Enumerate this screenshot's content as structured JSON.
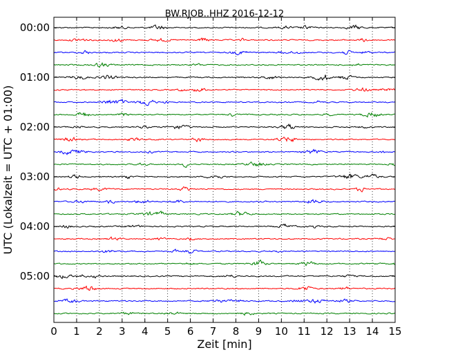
{
  "chart_data": {
    "type": "line",
    "title": "BW.RJOB..HHZ 2016-12-12",
    "xlabel": "Zeit  [min]",
    "ylabel": "UTC (Lokalzeit = UTC + 01:00)",
    "xlim": [
      0,
      15
    ],
    "x_ticks": [
      "0",
      "1",
      "2",
      "3",
      "4",
      "5",
      "6",
      "7",
      "8",
      "9",
      "10",
      "11",
      "12",
      "13",
      "14",
      "15"
    ],
    "y_ticks": [
      "00:00",
      "01:00",
      "02:00",
      "03:00",
      "04:00",
      "05:00"
    ],
    "traces_per_hour": 4,
    "trace_count": 24,
    "trace_interval_min": 15,
    "colors": [
      "#000000",
      "#ff0000",
      "#0000ff",
      "#008000"
    ],
    "grid": "vertical dotted"
  }
}
